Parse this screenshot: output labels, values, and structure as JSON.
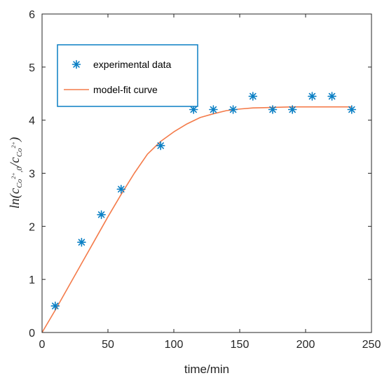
{
  "chart_data": {
    "type": "scatter",
    "xlabel": "time/min",
    "ylabel": {
      "prefix": "ln(c",
      "sub1": "Co",
      "sup1": "2+",
      "sub1b": ",0",
      "slash": "/c",
      "sub2": "Co",
      "sup2": "2+",
      "suffix": ")"
    },
    "xlim": [
      0,
      250
    ],
    "ylim": [
      0,
      6
    ],
    "xticks": [
      0,
      50,
      100,
      150,
      200,
      250
    ],
    "yticks": [
      0,
      1,
      2,
      3,
      4,
      5,
      6
    ],
    "grid": false,
    "legend_position": "top-left",
    "series": [
      {
        "name": "experimental data",
        "kind": "markers",
        "marker": "asterisk",
        "color": "#0a7fc4",
        "x": [
          10,
          30,
          45,
          60,
          90,
          115,
          130,
          145,
          160,
          175,
          190,
          205,
          220,
          235
        ],
        "y": [
          0.5,
          1.7,
          2.22,
          2.7,
          3.52,
          4.2,
          4.2,
          4.2,
          4.45,
          4.2,
          4.2,
          4.45,
          4.45,
          4.2
        ]
      },
      {
        "name": "model-fit curve",
        "kind": "line",
        "color": "#f47b4a",
        "x": [
          0,
          10,
          20,
          30,
          40,
          50,
          60,
          70,
          80,
          90,
          100,
          110,
          120,
          130,
          140,
          150,
          160,
          175,
          190,
          205,
          220,
          235
        ],
        "y": [
          0,
          0.42,
          0.86,
          1.3,
          1.74,
          2.18,
          2.6,
          3.0,
          3.36,
          3.6,
          3.78,
          3.93,
          4.05,
          4.12,
          4.18,
          4.21,
          4.23,
          4.24,
          4.25,
          4.25,
          4.25,
          4.25
        ]
      }
    ]
  }
}
